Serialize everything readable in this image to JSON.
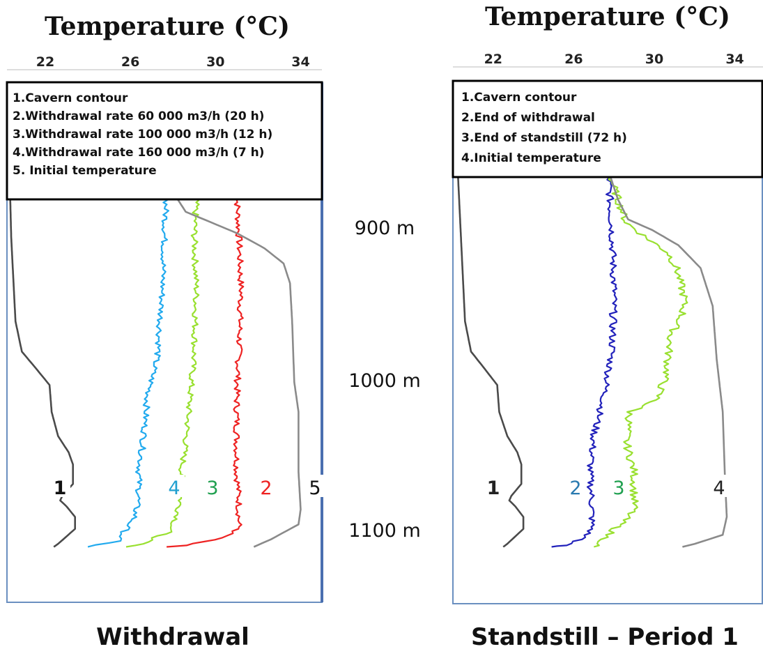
{
  "depth_labels": [
    "900 m",
    "1000 m",
    "1100 m"
  ],
  "chart_data": [
    {
      "type": "line",
      "title": "Withdrawal",
      "xlabel": "Temperature (°C)",
      "xticks": [
        "22",
        "26",
        "30",
        "34"
      ],
      "xlim": [
        20.2,
        35.0
      ],
      "ylim": [
        845,
        1125
      ],
      "y_axis": "depth (m)",
      "legend": {
        "placement": "top",
        "entries": [
          "1.Cavern contour",
          "2.Withdrawal  rate 60 000 m3/h (20 h)",
          "3.Withdrawal  rate 100 000 m3/h (12 h)",
          "4.Withdrawal  rate 160 000 m3/h (7 h)",
          "5. Initial temperature"
        ]
      },
      "series": [
        {
          "label": "1",
          "color": "#4a4a4a",
          "points": [
            [
              20.3,
              850
            ],
            [
              20.4,
              905
            ],
            [
              20.6,
              960
            ],
            [
              20.9,
              980
            ],
            [
              21.5,
              990
            ],
            [
              22.2,
              1002
            ],
            [
              22.3,
              1020
            ],
            [
              22.6,
              1036
            ],
            [
              23.1,
              1047
            ],
            [
              23.3,
              1055
            ],
            [
              23.3,
              1068
            ],
            [
              22.8,
              1076
            ],
            [
              22.7,
              1079
            ],
            [
              23.0,
              1083
            ],
            [
              23.4,
              1090
            ],
            [
              23.4,
              1098
            ],
            [
              22.6,
              1108
            ],
            [
              22.4,
              1110
            ]
          ]
        },
        {
          "label": "2",
          "color": "#ee2222",
          "noise": 0.15,
          "points": [
            [
              31.0,
              875
            ],
            [
              31.1,
              905
            ],
            [
              31.2,
              940
            ],
            [
              31.1,
              980
            ],
            [
              31.0,
              1010
            ],
            [
              31.0,
              1040
            ],
            [
              31.0,
              1060
            ],
            [
              31.1,
              1080
            ],
            [
              31.1,
              1098
            ],
            [
              30.3,
              1104
            ],
            [
              28.5,
              1109
            ],
            [
              27.7,
              1110
            ]
          ]
        },
        {
          "label": "3",
          "color": "#99e030",
          "noise": 0.15,
          "points": [
            [
              29.1,
              875
            ],
            [
              29.0,
              905
            ],
            [
              29.1,
              940
            ],
            [
              29.0,
              980
            ],
            [
              28.8,
              1010
            ],
            [
              28.6,
              1040
            ],
            [
              28.4,
              1060
            ],
            [
              28.4,
              1075
            ],
            [
              28.2,
              1090
            ],
            [
              27.8,
              1100
            ],
            [
              26.5,
              1108
            ],
            [
              25.8,
              1110
            ]
          ]
        },
        {
          "label": "4",
          "color": "#22aaee",
          "noise": 0.15,
          "points": [
            [
              27.7,
              875
            ],
            [
              27.6,
              905
            ],
            [
              27.5,
              940
            ],
            [
              27.3,
              980
            ],
            [
              26.8,
              1010
            ],
            [
              26.6,
              1040
            ],
            [
              26.4,
              1060
            ],
            [
              26.4,
              1075
            ],
            [
              26.2,
              1090
            ],
            [
              25.7,
              1100
            ],
            [
              25.4,
              1106
            ],
            [
              24.0,
              1110
            ]
          ]
        },
        {
          "label": "5",
          "color": "#8a8a8a",
          "points": [
            [
              28.0,
              875
            ],
            [
              28.6,
              888
            ],
            [
              29.8,
              895
            ],
            [
              31.0,
              902
            ],
            [
              32.3,
              912
            ],
            [
              33.2,
              922
            ],
            [
              33.5,
              935
            ],
            [
              33.6,
              960
            ],
            [
              33.7,
              1000
            ],
            [
              33.9,
              1020
            ],
            [
              33.9,
              1060
            ],
            [
              34.0,
              1085
            ],
            [
              33.9,
              1095
            ],
            [
              32.6,
              1105
            ],
            [
              31.8,
              1110
            ]
          ]
        }
      ]
    },
    {
      "type": "line",
      "title": "Standstill – Period 1",
      "xlabel": "Temperature (°C)",
      "xticks": [
        "22",
        "26",
        "30",
        "34"
      ],
      "xlim": [
        20.0,
        35.4
      ],
      "ylim": [
        845,
        1125
      ],
      "y_axis": "depth (m)",
      "legend": {
        "placement": "top",
        "entries": [
          "1.Cavern contour",
          "2.End of withdrawal",
          "3.End of standstill  (72 h)",
          "4.Initial temperature"
        ]
      },
      "series": [
        {
          "label": "1",
          "color": "#4a4a4a",
          "points": [
            [
              20.2,
              850
            ],
            [
              20.4,
              905
            ],
            [
              20.6,
              960
            ],
            [
              20.9,
              980
            ],
            [
              21.5,
              990
            ],
            [
              22.2,
              1002
            ],
            [
              22.3,
              1020
            ],
            [
              22.7,
              1036
            ],
            [
              23.2,
              1047
            ],
            [
              23.4,
              1055
            ],
            [
              23.4,
              1068
            ],
            [
              22.9,
              1076
            ],
            [
              22.8,
              1079
            ],
            [
              23.1,
              1083
            ],
            [
              23.5,
              1090
            ],
            [
              23.5,
              1098
            ],
            [
              22.7,
              1108
            ],
            [
              22.5,
              1110
            ]
          ]
        },
        {
          "label": "2",
          "color": "#2222bb",
          "noise": 0.18,
          "points": [
            [
              27.7,
              860
            ],
            [
              27.9,
              900
            ],
            [
              28.0,
              940
            ],
            [
              27.9,
              980
            ],
            [
              27.5,
              1010
            ],
            [
              27.0,
              1035
            ],
            [
              26.8,
              1060
            ],
            [
              26.9,
              1080
            ],
            [
              26.9,
              1098
            ],
            [
              26.4,
              1105
            ],
            [
              25.5,
              1109
            ],
            [
              24.9,
              1110
            ]
          ]
        },
        {
          "label": "3",
          "color": "#99e030",
          "noise": 0.2,
          "points": [
            [
              27.7,
              860
            ],
            [
              28.2,
              880
            ],
            [
              28.6,
              895
            ],
            [
              29.6,
              905
            ],
            [
              30.7,
              915
            ],
            [
              31.1,
              925
            ],
            [
              31.5,
              945
            ],
            [
              31.4,
              955
            ],
            [
              30.8,
              970
            ],
            [
              30.6,
              995
            ],
            [
              30.1,
              1012
            ],
            [
              28.8,
              1020
            ],
            [
              28.6,
              1040
            ],
            [
              29.0,
              1060
            ],
            [
              29.0,
              1085
            ],
            [
              28.3,
              1095
            ],
            [
              27.7,
              1102
            ],
            [
              27.3,
              1108
            ],
            [
              27.0,
              1110
            ]
          ]
        },
        {
          "label": "4",
          "color": "#8a8a8a",
          "points": [
            [
              27.7,
              860
            ],
            [
              28.2,
              880
            ],
            [
              28.7,
              893
            ],
            [
              29.9,
              900
            ],
            [
              31.2,
              910
            ],
            [
              32.3,
              925
            ],
            [
              32.9,
              950
            ],
            [
              33.1,
              985
            ],
            [
              33.4,
              1020
            ],
            [
              33.5,
              1060
            ],
            [
              33.6,
              1090
            ],
            [
              33.4,
              1102
            ],
            [
              32.0,
              1108
            ],
            [
              31.4,
              1110
            ]
          ]
        }
      ],
      "point_labels_color": [
        "#222222",
        "#2a7ab0",
        "#20a050",
        "#222222"
      ]
    }
  ]
}
